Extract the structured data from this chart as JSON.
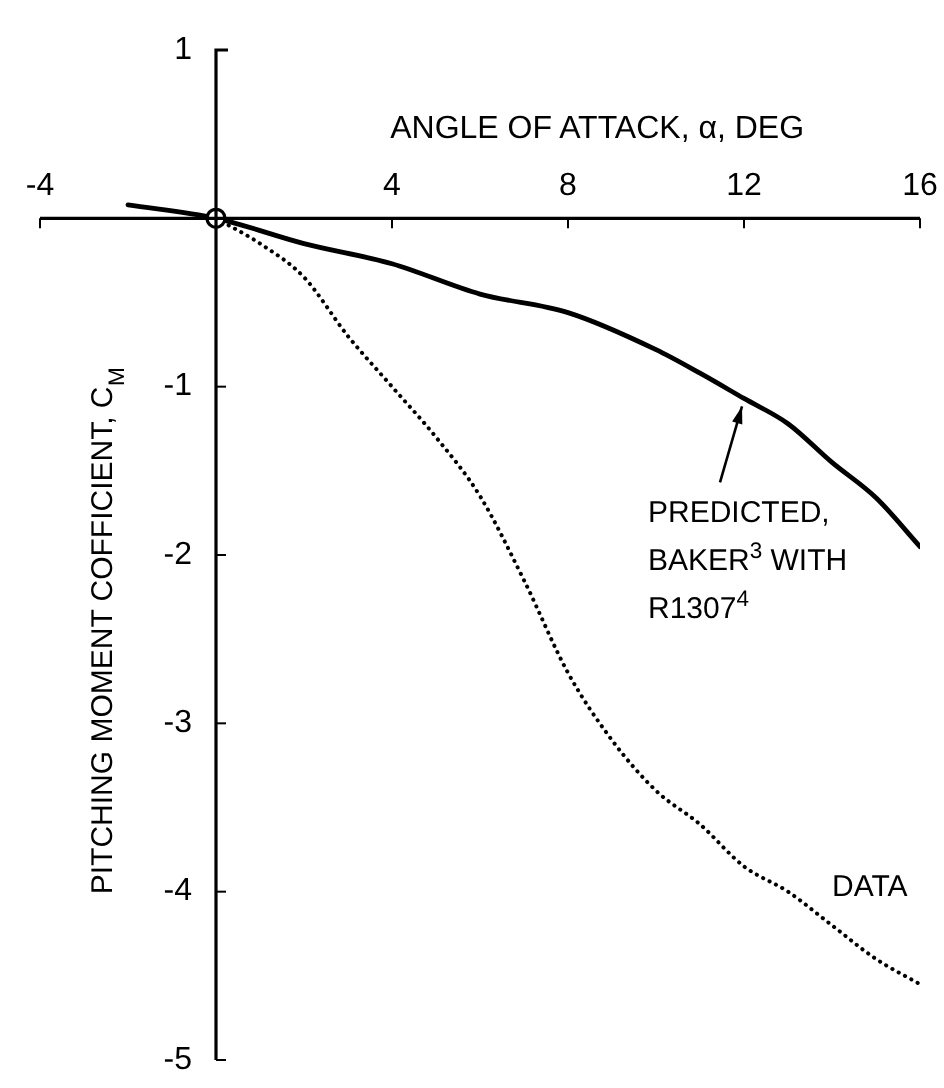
{
  "chart_data": {
    "type": "line",
    "xlabel": "ANGLE OF ATTACK, α, DEG",
    "ylabel": "PITCHING MOMENT COFFICIENT, C$_{M}$",
    "xlim": [
      -4,
      16
    ],
    "ylim": [
      -5,
      1
    ],
    "xticks": [
      -4,
      {
        "value": 0,
        "label": null
      },
      4,
      8,
      12,
      16
    ],
    "yticks": [
      -5,
      -4,
      -3,
      -2,
      -1,
      {
        "value": 0,
        "label": null
      },
      1
    ],
    "legend": false,
    "marker": "none",
    "series": [
      {
        "name": "PREDICTED, BAKER$^{3}$ WITH R1307$^{4}$",
        "color": "#000000",
        "line_style": "solid",
        "x": [
          -2,
          0,
          2,
          4,
          6,
          8,
          10,
          11,
          12,
          13,
          14,
          15,
          16
        ],
        "values": [
          0.08,
          0,
          -0.15,
          -0.27,
          -0.45,
          -0.56,
          -0.78,
          -0.92,
          -1.07,
          -1.22,
          -1.45,
          -1.66,
          -1.95
        ]
      },
      {
        "name": "DATA",
        "color": "#000000",
        "line_style": "dotted",
        "x": [
          0,
          1,
          2,
          3,
          4,
          5,
          6,
          7,
          8,
          9,
          10,
          11,
          12,
          13,
          14,
          15,
          16
        ],
        "values": [
          0,
          -0.15,
          -0.35,
          -0.7,
          -1.0,
          -1.3,
          -1.65,
          -2.15,
          -2.7,
          -3.1,
          -3.4,
          -3.6,
          -3.85,
          -4.0,
          -4.2,
          -4.4,
          -4.55
        ]
      },
      {
        "type": "scatter",
        "color": "#000000",
        "marker": "circle",
        "x": [
          0
        ],
        "values": [
          0
        ]
      }
    ]
  }
}
